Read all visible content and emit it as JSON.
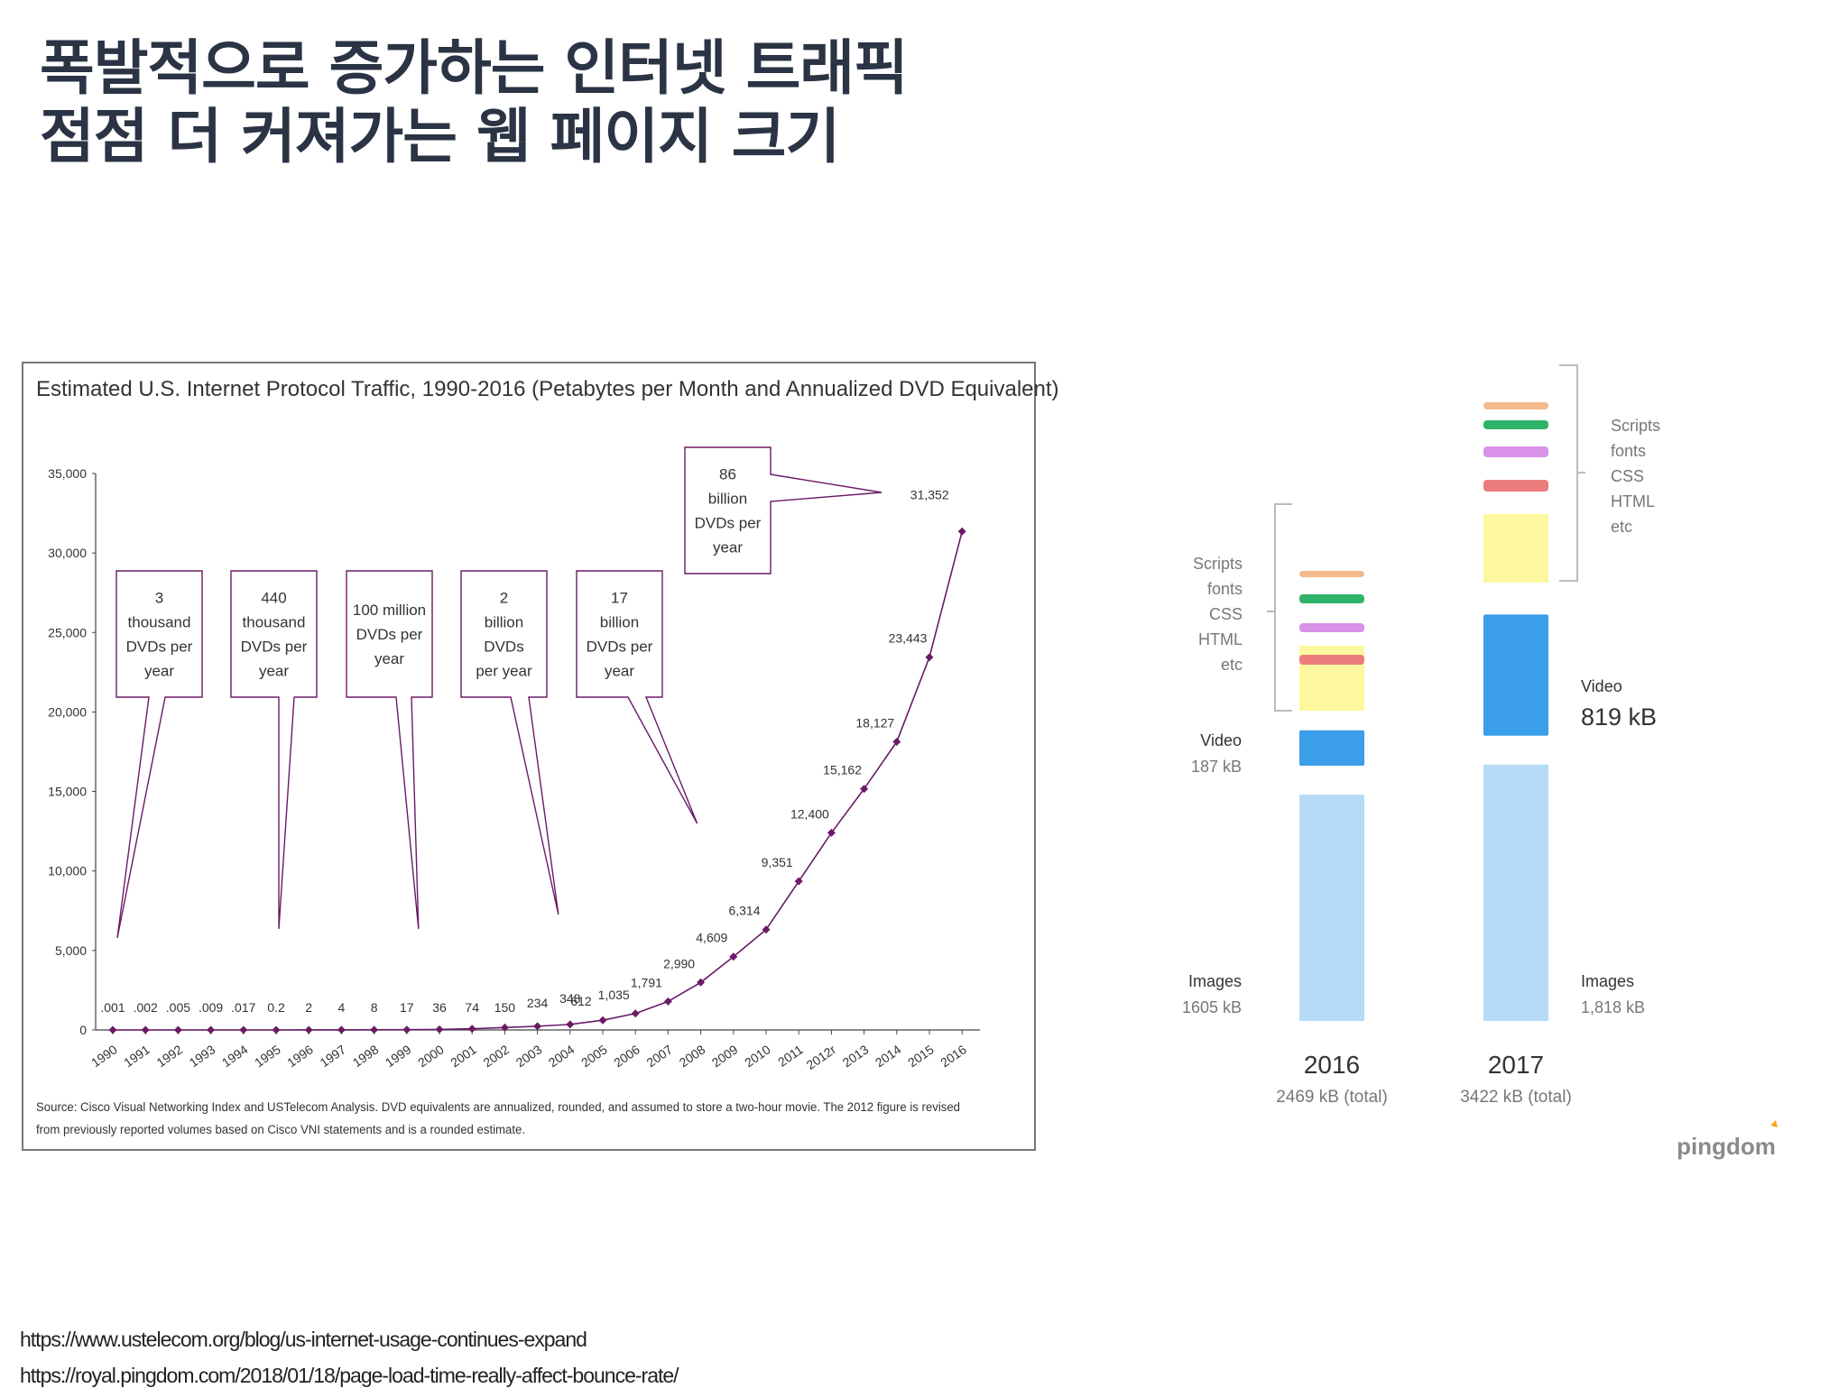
{
  "titles": [
    "폭발적으로 증가하는 인터넷 트래픽",
    "점점 더 커져가는 웹 페이지 크기"
  ],
  "links": [
    "https://www.ustelecom.org/blog/us-internet-usage-continues-expand",
    "https://royal.pingdom.com/2018/01/18/page-load-time-really-affect-bounce-rate/"
  ],
  "chart_data": [
    {
      "type": "line",
      "title": "Estimated U.S. Internet Protocol Traffic, 1990-2016 (Petabytes per Month and Annualized DVD Equivalent)",
      "x": [
        "1990",
        "1991",
        "1992",
        "1993",
        "1994",
        "1995",
        "1996",
        "1997",
        "1998",
        "1999",
        "2000",
        "2001",
        "2002",
        "2003",
        "2004",
        "2005",
        "2006",
        "2007",
        "2008",
        "2009",
        "2010",
        "2011",
        "2012r",
        "2013",
        "2014",
        "2015",
        "2016"
      ],
      "values": [
        0.001,
        0.002,
        0.005,
        0.009,
        0.017,
        0.2,
        2,
        4,
        8,
        17,
        36,
        74,
        150,
        234,
        348,
        612,
        1035,
        1791,
        2990,
        4609,
        6314,
        9351,
        12400,
        15162,
        18127,
        23443,
        31352
      ],
      "data_labels": [
        ".001",
        ".002",
        ".005",
        ".009",
        ".017",
        "0.2",
        "2",
        "4",
        "8",
        "17",
        "36",
        "74",
        "150",
        "234",
        "348",
        "612",
        "1,035",
        "1,791",
        "2,990",
        "4,609",
        "6,314",
        "9,351",
        "12,400",
        "15,162",
        "18,127",
        "23,443",
        "31,352"
      ],
      "ylim": [
        0,
        35000
      ],
      "yticks": [
        0,
        5000,
        10000,
        15000,
        20000,
        25000,
        30000,
        35000
      ],
      "ytick_labels": [
        "0",
        "5,000",
        "10,000",
        "15,000",
        "20,000",
        "25,000",
        "30,000",
        "35,000"
      ],
      "line_color": "#6b1a66",
      "callouts": [
        {
          "lines": [
            "3",
            "thousand",
            "DVDs per",
            "year"
          ],
          "year": "1990"
        },
        {
          "lines": [
            "440",
            "thousand",
            "DVDs per",
            "year"
          ],
          "year": "1995"
        },
        {
          "lines": [
            "100 million",
            "DVDs per",
            "year"
          ],
          "year": "1999"
        },
        {
          "lines": [
            "2",
            "billion",
            "DVDs",
            "per year"
          ],
          "year": "2004"
        },
        {
          "lines": [
            "17",
            "billion",
            "DVDs per",
            "year"
          ],
          "year": "2008"
        },
        {
          "lines": [
            "86",
            "billion",
            "DVDs per",
            "year"
          ],
          "year": "2014"
        }
      ],
      "source": [
        "Source: Cisco Visual Networking Index and USTelecom Analysis. DVD equivalents are annualized, rounded, and assumed to store a two-hour movie.  The 2012 figure is revised",
        "from previously reported volumes based on Cisco VNI statements and is a rounded estimate."
      ]
    },
    {
      "type": "bar",
      "categories": [
        "2016",
        "2017"
      ],
      "totals": [
        "2469 kB (total)",
        "3422 kB (total)"
      ],
      "series": [
        {
          "label": "Images",
          "values": [
            1605,
            1818
          ],
          "value_labels": [
            "1605 kB",
            "1,818 kB"
          ],
          "color": "#b6dbf6"
        },
        {
          "label": "Video",
          "values": [
            187,
            819
          ],
          "value_labels": [
            "187 kB",
            "819 kB"
          ],
          "color": "#3b9ee8"
        }
      ],
      "other_group": {
        "label_lines": [
          "Scripts",
          "fonts",
          "CSS",
          "HTML",
          "etc"
        ],
        "colors": [
          "#f5b98b",
          "#2fb26a",
          "#d892e8",
          "#ec7c7c",
          "#fdf89f"
        ]
      },
      "logo": "pingdom"
    }
  ]
}
